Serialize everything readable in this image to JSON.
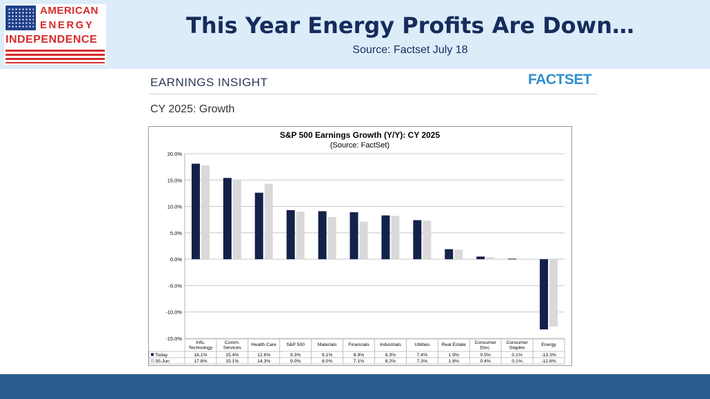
{
  "header": {
    "logo_line1": "AMERICAN",
    "logo_line2": "ENERGY",
    "logo_line3": "INDEPENDENCE",
    "title": "This Year Energy Profits Are Down…",
    "subtitle": "Source: Factset July 18"
  },
  "report": {
    "section_label": "EARNINGS INSIGHT",
    "brand": "FACTSET",
    "subheading": "CY 2025: Growth"
  },
  "colors": {
    "today": "#14214a",
    "prior": "#d9d9d9",
    "header_bg": "#dcecf9",
    "footer": "#2c5d8f"
  },
  "chart_data": {
    "type": "bar",
    "title": "S&P 500 Earnings Growth (Y/Y): CY 2025",
    "subtitle": "(Source: FactSet)",
    "categories": [
      "Info. Technology",
      "Comm. Services",
      "Health Care",
      "S&P 500",
      "Materials",
      "Financials",
      "Industrials",
      "Utilities",
      "Real Estate",
      "Consumer Disc.",
      "Consumer Staples",
      "Energy"
    ],
    "category_lines": [
      [
        "Info.",
        "Technology"
      ],
      [
        "Comm.",
        "Services"
      ],
      [
        "Health Care"
      ],
      [
        "S&P 500"
      ],
      [
        "Materials"
      ],
      [
        "Financials"
      ],
      [
        "Industrials"
      ],
      [
        "Utilities"
      ],
      [
        "Real Estate"
      ],
      [
        "Consumer",
        "Disc."
      ],
      [
        "Consumer",
        "Staples"
      ],
      [
        "Energy"
      ]
    ],
    "series": [
      {
        "name": "Today",
        "color": "#14214a",
        "values": [
          18.1,
          15.4,
          12.6,
          9.3,
          9.1,
          8.9,
          8.3,
          7.4,
          1.9,
          0.5,
          0.1,
          -13.3
        ],
        "labels": [
          "18.1%",
          "15.4%",
          "12.6%",
          "9.3%",
          "9.1%",
          "8.9%",
          "8.3%",
          "7.4%",
          "1.9%",
          "0.5%",
          "0.1%",
          "-13.3%"
        ]
      },
      {
        "name": "30-Jun",
        "color": "#d9d9d9",
        "values": [
          17.8,
          15.1,
          14.3,
          9.0,
          8.0,
          7.1,
          8.2,
          7.3,
          1.8,
          0.4,
          0.1,
          -12.8
        ],
        "labels": [
          "17.8%",
          "15.1%",
          "14.3%",
          "9.0%",
          "8.0%",
          "7.1%",
          "8.2%",
          "7.3%",
          "1.8%",
          "0.4%",
          "0.1%",
          "-12.8%"
        ]
      }
    ],
    "ylim": [
      -15,
      20
    ],
    "yticks": [
      20,
      15,
      10,
      5,
      0,
      -5,
      -10,
      -15
    ],
    "ytick_labels": [
      "20.0%",
      "15.0%",
      "10.0%",
      "5.0%",
      "0.0%",
      "-5.0%",
      "-10.0%",
      "-15.0%"
    ],
    "grid": true,
    "legend": "table-below"
  }
}
